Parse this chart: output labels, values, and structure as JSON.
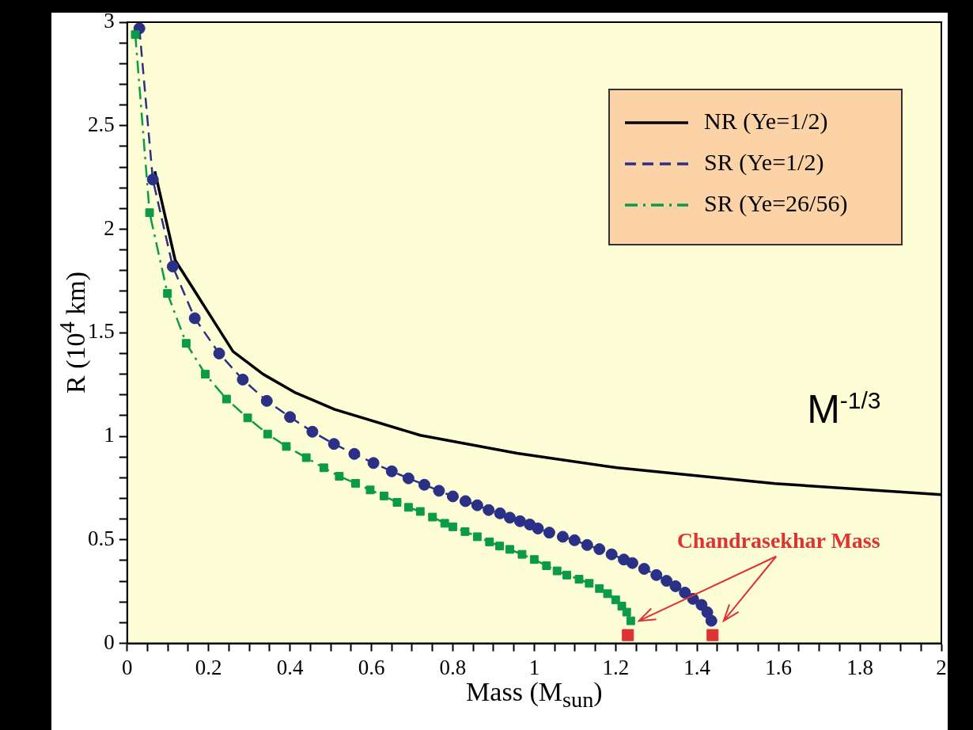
{
  "chart_data": {
    "type": "line",
    "xlabel": "Mass (M$_{sun}$)",
    "ylabel": "R (10$^{4}$ km)",
    "xlim": [
      0,
      2
    ],
    "ylim": [
      0,
      3
    ],
    "xticks": [
      0,
      {
        "value": 0.05,
        "label": null
      },
      {
        "value": 0.1,
        "label": null
      },
      {
        "value": 0.15,
        "label": null
      },
      0.2,
      {
        "value": 0.25,
        "label": null
      },
      {
        "value": 0.3,
        "label": null
      },
      {
        "value": 0.35,
        "label": null
      },
      0.4,
      {
        "value": 0.45,
        "label": null
      },
      {
        "value": 0.5,
        "label": null
      },
      {
        "value": 0.55,
        "label": null
      },
      0.6,
      {
        "value": 0.65,
        "label": null
      },
      {
        "value": 0.7,
        "label": null
      },
      {
        "value": 0.75,
        "label": null
      },
      0.8,
      {
        "value": 0.85,
        "label": null
      },
      {
        "value": 0.9,
        "label": null
      },
      {
        "value": 0.95,
        "label": null
      },
      1,
      {
        "value": 1.05,
        "label": null
      },
      {
        "value": 1.1,
        "label": null
      },
      {
        "value": 1.15,
        "label": null
      },
      1.2,
      {
        "value": 1.25,
        "label": null
      },
      {
        "value": 1.3,
        "label": null
      },
      {
        "value": 1.35,
        "label": null
      },
      1.4,
      {
        "value": 1.45,
        "label": null
      },
      {
        "value": 1.5,
        "label": null
      },
      {
        "value": 1.55,
        "label": null
      },
      1.6,
      {
        "value": 1.65,
        "label": null
      },
      {
        "value": 1.7,
        "label": null
      },
      {
        "value": 1.75,
        "label": null
      },
      1.8,
      {
        "value": 1.85,
        "label": null
      },
      {
        "value": 1.9,
        "label": null
      },
      {
        "value": 1.95,
        "label": null
      },
      2
    ],
    "yticks": [
      0,
      {
        "value": 0.1,
        "label": null
      },
      {
        "value": 0.2,
        "label": null
      },
      {
        "value": 0.3,
        "label": null
      },
      {
        "value": 0.4,
        "label": null
      },
      0.5,
      {
        "value": 0.6,
        "label": null
      },
      {
        "value": 0.7,
        "label": null
      },
      {
        "value": 0.8,
        "label": null
      },
      {
        "value": 0.9,
        "label": null
      },
      1,
      {
        "value": 1.1,
        "label": null
      },
      {
        "value": 1.2,
        "label": null
      },
      {
        "value": 1.3,
        "label": null
      },
      {
        "value": 1.4,
        "label": null
      },
      1.5,
      {
        "value": 1.6,
        "label": null
      },
      {
        "value": 1.7,
        "label": null
      },
      {
        "value": 1.8,
        "label": null
      },
      {
        "value": 1.9,
        "label": null
      },
      2,
      {
        "value": 2.1,
        "label": null
      },
      {
        "value": 2.2,
        "label": null
      },
      {
        "value": 2.3,
        "label": null
      },
      {
        "value": 2.4,
        "label": null
      },
      2.5,
      {
        "value": 2.6,
        "label": null
      },
      {
        "value": 2.7,
        "label": null
      },
      {
        "value": 2.8,
        "label": null
      },
      {
        "value": 2.9,
        "label": null
      },
      3
    ],
    "grid": false,
    "legend": "top right",
    "annotations": [
      "M$^{-1/3}$",
      "Chandrasekhar Mass"
    ],
    "series": [
      {
        "name": "NR (Ye=1/2)",
        "type": "line",
        "color": "#000000",
        "marker": "none",
        "line_style": "solid",
        "x": [
          0.068,
          0.118,
          0.26,
          0.334,
          0.414,
          0.51,
          0.72,
          0.958,
          1.204,
          1.591,
          2.0
        ],
        "values": [
          2.28,
          1.85,
          1.41,
          1.3,
          1.21,
          1.13,
          1.005,
          0.918,
          0.848,
          0.772,
          0.718
        ]
      },
      {
        "name": "SR (Ye=1/2)",
        "type": "line",
        "color": "#2b3087",
        "marker": "circle",
        "line_style": "dashed",
        "x": [
          0.03,
          0.063,
          0.112,
          0.166,
          0.226,
          0.284,
          0.343,
          0.4,
          0.455,
          0.508,
          0.558,
          0.605,
          0.65,
          0.691,
          0.73,
          0.766,
          0.8,
          0.831,
          0.86,
          0.888,
          0.916,
          0.94,
          0.965,
          0.989,
          1.009,
          1.037,
          1.07,
          1.099,
          1.13,
          1.16,
          1.19,
          1.22,
          1.241,
          1.27,
          1.3,
          1.325,
          1.347,
          1.37,
          1.39,
          1.411,
          1.425,
          1.435
        ],
        "values": [
          2.97,
          2.24,
          1.82,
          1.57,
          1.4,
          1.274,
          1.171,
          1.093,
          1.022,
          0.963,
          0.915,
          0.871,
          0.831,
          0.797,
          0.766,
          0.737,
          0.71,
          0.687,
          0.667,
          0.644,
          0.628,
          0.607,
          0.59,
          0.574,
          0.555,
          0.535,
          0.515,
          0.498,
          0.475,
          0.455,
          0.43,
          0.405,
          0.388,
          0.36,
          0.33,
          0.302,
          0.276,
          0.245,
          0.215,
          0.186,
          0.15,
          0.109
        ]
      },
      {
        "name": "SR (Ye=26/56)",
        "type": "line",
        "color": "#0a9a48",
        "marker": "square",
        "line_style": "dashdot",
        "x": [
          0.02,
          0.055,
          0.099,
          0.145,
          0.192,
          0.244,
          0.296,
          0.345,
          0.391,
          0.44,
          0.483,
          0.521,
          0.561,
          0.597,
          0.631,
          0.663,
          0.691,
          0.72,
          0.75,
          0.78,
          0.8,
          0.83,
          0.86,
          0.89,
          0.915,
          0.94,
          0.97,
          1.0,
          1.03,
          1.056,
          1.08,
          1.11,
          1.135,
          1.16,
          1.18,
          1.2,
          1.215,
          1.227,
          1.237
        ],
        "values": [
          2.94,
          2.08,
          1.69,
          1.449,
          1.3,
          1.18,
          1.089,
          1.011,
          0.951,
          0.897,
          0.848,
          0.807,
          0.773,
          0.741,
          0.712,
          0.681,
          0.657,
          0.637,
          0.61,
          0.58,
          0.563,
          0.54,
          0.515,
          0.49,
          0.47,
          0.454,
          0.43,
          0.405,
          0.375,
          0.35,
          0.33,
          0.31,
          0.29,
          0.265,
          0.24,
          0.21,
          0.18,
          0.151,
          0.109
        ]
      },
      {
        "type": "scatter",
        "color": "#dd3333",
        "marker": "square",
        "x": [
          1.23,
          1.438
        ],
        "values": [
          0.04,
          0.04
        ]
      }
    ]
  }
}
